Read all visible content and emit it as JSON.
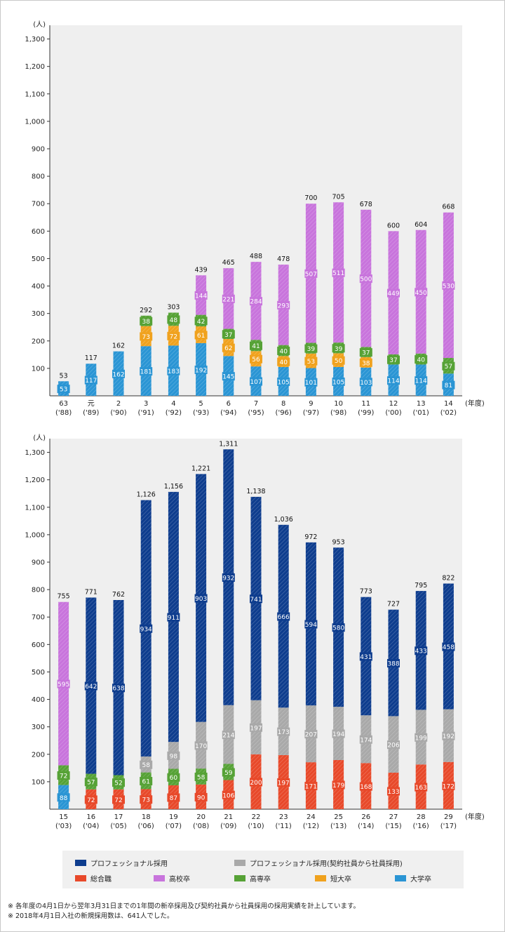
{
  "colors": {
    "plot_bg": "#efefef",
    "daigaku": "#2a95d4",
    "tandai": "#f0a21e",
    "kosen": "#56a236",
    "koko": "#c874dc",
    "sogo": "#e8492a",
    "pro_keiyaku": "#a9a9a9",
    "pro": "#0e3d8e"
  },
  "chart_data": [
    {
      "type": "bar",
      "stacked": true,
      "y_unit": "(人)",
      "x_unit": "(年度)",
      "ylim": [
        0,
        1350
      ],
      "yticks": [
        "100",
        "200",
        "300",
        "400",
        "500",
        "600",
        "700",
        "800",
        "900",
        "1,000",
        "1,100",
        "1,200",
        "1,300"
      ],
      "categories": [
        {
          "top": "63",
          "bottom": "('88)"
        },
        {
          "top": "元",
          "bottom": "('89)"
        },
        {
          "top": "2",
          "bottom": "('90)"
        },
        {
          "top": "3",
          "bottom": "('91)"
        },
        {
          "top": "4",
          "bottom": "('92)"
        },
        {
          "top": "5",
          "bottom": "('93)"
        },
        {
          "top": "6",
          "bottom": "('94)"
        },
        {
          "top": "7",
          "bottom": "('95)"
        },
        {
          "top": "8",
          "bottom": "('96)"
        },
        {
          "top": "9",
          "bottom": "('97)"
        },
        {
          "top": "10",
          "bottom": "('98)"
        },
        {
          "top": "11",
          "bottom": "('99)"
        },
        {
          "top": "12",
          "bottom": "('00)"
        },
        {
          "top": "13",
          "bottom": "('01)"
        },
        {
          "top": "14",
          "bottom": "('02)"
        }
      ],
      "totals": [
        "53",
        "117",
        "162",
        "292",
        "303",
        "439",
        "465",
        "488",
        "478",
        "700",
        "705",
        "678",
        "600",
        "604",
        "668"
      ],
      "series": [
        {
          "name": "大学卒",
          "color_key": "daigaku",
          "values": [
            53,
            117,
            162,
            181,
            183,
            192,
            145,
            107,
            105,
            101,
            105,
            103,
            114,
            114,
            81
          ],
          "labels": [
            "53",
            "117",
            "162",
            "181",
            "183",
            "192",
            "145",
            "107",
            "105",
            "101",
            "105",
            "103",
            "114",
            "114",
            "81"
          ]
        },
        {
          "name": "短大卒",
          "color_key": "tandai",
          "values": [
            0,
            0,
            0,
            73,
            72,
            61,
            62,
            56,
            40,
            53,
            50,
            38,
            0,
            0,
            0
          ],
          "labels": [
            "",
            "",
            "",
            "73",
            "72",
            "61",
            "62",
            "56",
            "40",
            "53",
            "50",
            "38",
            "",
            "",
            ""
          ]
        },
        {
          "name": "高専卒",
          "color_key": "kosen",
          "values": [
            0,
            0,
            0,
            38,
            48,
            42,
            37,
            41,
            40,
            39,
            39,
            37,
            37,
            40,
            57
          ],
          "labels": [
            "",
            "",
            "",
            "38",
            "48",
            "42",
            "37",
            "41",
            "40",
            "39",
            "39",
            "37",
            "37",
            "40",
            "57"
          ]
        },
        {
          "name": "高校卒",
          "color_key": "koko",
          "values": [
            0,
            0,
            0,
            0,
            0,
            144,
            221,
            284,
            293,
            507,
            511,
            500,
            449,
            450,
            530
          ],
          "labels": [
            "",
            "",
            "",
            "",
            "",
            "144",
            "221",
            "284",
            "293",
            "507",
            "511",
            "500",
            "449",
            "450",
            "530"
          ]
        }
      ]
    },
    {
      "type": "bar",
      "stacked": true,
      "y_unit": "(人)",
      "x_unit": "(年度)",
      "ylim": [
        0,
        1350
      ],
      "yticks": [
        "100",
        "200",
        "300",
        "400",
        "500",
        "600",
        "700",
        "800",
        "900",
        "1,000",
        "1,100",
        "1,200",
        "1,300"
      ],
      "categories": [
        {
          "top": "15",
          "bottom": "('03)"
        },
        {
          "top": "16",
          "bottom": "('04)"
        },
        {
          "top": "17",
          "bottom": "('05)"
        },
        {
          "top": "18",
          "bottom": "('06)"
        },
        {
          "top": "19",
          "bottom": "('07)"
        },
        {
          "top": "20",
          "bottom": "('08)"
        },
        {
          "top": "21",
          "bottom": "('09)"
        },
        {
          "top": "22",
          "bottom": "('10)"
        },
        {
          "top": "23",
          "bottom": "('11)"
        },
        {
          "top": "24",
          "bottom": "('12)"
        },
        {
          "top": "25",
          "bottom": "('13)"
        },
        {
          "top": "26",
          "bottom": "('14)"
        },
        {
          "top": "27",
          "bottom": "('15)"
        },
        {
          "top": "28",
          "bottom": "('16)"
        },
        {
          "top": "29",
          "bottom": "('17)"
        }
      ],
      "totals": [
        "755",
        "771",
        "762",
        "1,126",
        "1,156",
        "1,221",
        "1,311",
        "1,138",
        "1,036",
        "972",
        "953",
        "773",
        "727",
        "795",
        "822"
      ],
      "series": [
        {
          "name": "大学卒",
          "color_key": "daigaku",
          "values": [
            88,
            0,
            0,
            0,
            0,
            0,
            0,
            0,
            0,
            0,
            0,
            0,
            0,
            0,
            0
          ],
          "labels": [
            "88",
            "",
            "",
            "",
            "",
            "",
            "",
            "",
            "",
            "",
            "",
            "",
            "",
            "",
            ""
          ]
        },
        {
          "name": "総合職",
          "color_key": "sogo",
          "values": [
            0,
            72,
            72,
            73,
            87,
            90,
            106,
            200,
            197,
            171,
            179,
            168,
            133,
            163,
            172
          ],
          "labels": [
            "",
            "72",
            "72",
            "73",
            "87",
            "90",
            "106",
            "200",
            "197",
            "171",
            "179",
            "168",
            "133",
            "163",
            "172"
          ]
        },
        {
          "name": "高専卒",
          "color_key": "kosen",
          "values": [
            72,
            57,
            52,
            61,
            60,
            58,
            59,
            0,
            0,
            0,
            0,
            0,
            0,
            0,
            0
          ],
          "labels": [
            "72",
            "57",
            "52",
            "61",
            "60",
            "58",
            "59",
            "",
            "",
            "",
            "",
            "",
            "",
            "",
            ""
          ]
        },
        {
          "name": "高校卒",
          "color_key": "koko",
          "values": [
            595,
            0,
            0,
            0,
            0,
            0,
            0,
            0,
            0,
            0,
            0,
            0,
            0,
            0,
            0
          ],
          "labels": [
            "595",
            "",
            "",
            "",
            "",
            "",
            "",
            "",
            "",
            "",
            "",
            "",
            "",
            "",
            ""
          ]
        },
        {
          "name": "プロフェッショナル採用(契約社員から社員採用)",
          "color_key": "pro_keiyaku",
          "values": [
            0,
            0,
            0,
            58,
            98,
            170,
            214,
            197,
            173,
            207,
            194,
            174,
            206,
            199,
            192
          ],
          "labels": [
            "",
            "",
            "",
            "58",
            "98",
            "170",
            "214",
            "197",
            "173",
            "207",
            "194",
            "174",
            "206",
            "199",
            "192"
          ]
        },
        {
          "name": "プロフェッショナル採用",
          "color_key": "pro",
          "values": [
            0,
            642,
            638,
            934,
            911,
            903,
            932,
            741,
            666,
            594,
            580,
            431,
            388,
            433,
            458
          ],
          "labels": [
            "",
            "642",
            "638",
            "934",
            "911",
            "903",
            "932",
            "741",
            "666",
            "594",
            "580",
            "431",
            "388",
            "433",
            "458"
          ]
        }
      ]
    }
  ],
  "legend": {
    "items": [
      {
        "label": "プロフェッショナル採用",
        "color_key": "pro"
      },
      {
        "label": "プロフェッショナル採用(契約社員から社員採用)",
        "color_key": "pro_keiyaku"
      },
      {
        "label": "総合職",
        "color_key": "sogo"
      },
      {
        "label": "高校卒",
        "color_key": "koko"
      },
      {
        "label": "高専卒",
        "color_key": "kosen"
      },
      {
        "label": "短大卒",
        "color_key": "tandai"
      },
      {
        "label": "大学卒",
        "color_key": "daigaku"
      }
    ]
  },
  "notes": [
    "※ 各年度の4月1日から翌年3月31日までの1年間の新卒採用及び契約社員から社員採用の採用実績を計上しています。",
    "※ 2018年4月1日入社の新規採用数は、641人でした。"
  ]
}
